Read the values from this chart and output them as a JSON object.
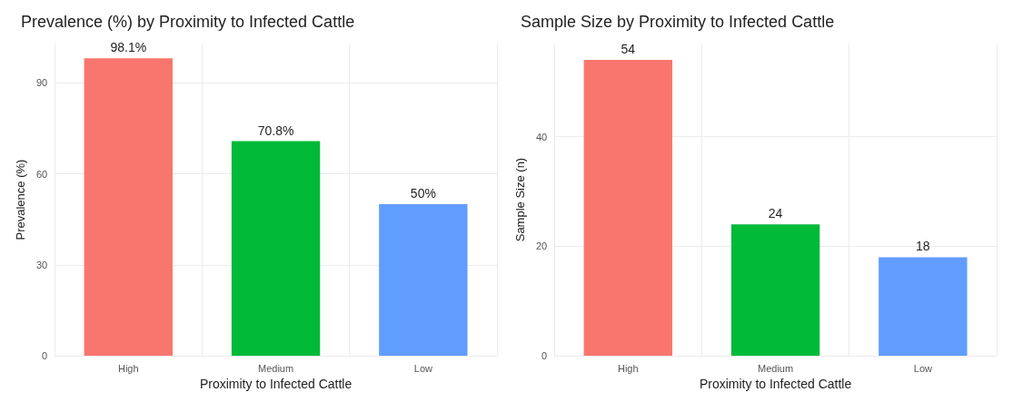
{
  "chart_data": [
    {
      "type": "bar",
      "title": "Prevalence (%) by Proximity to Infected Cattle",
      "xlabel": "Proximity to Infected Cattle",
      "ylabel": "Prevalence (%)",
      "categories": [
        "High",
        "Medium",
        "Low"
      ],
      "colors": [
        "#f8766d",
        "#00ba38",
        "#619cff"
      ],
      "values": [
        98.1,
        70.8,
        50
      ],
      "value_labels": [
        "98.1%",
        "70.8%",
        "50%"
      ],
      "ylim": [
        0,
        103
      ],
      "yticks": [
        0,
        30,
        60,
        90
      ],
      "grid": true
    },
    {
      "type": "bar",
      "title": "Sample Size by Proximity to Infected Cattle",
      "xlabel": "Proximity to Infected Cattle",
      "ylabel": "Sample Size (n)",
      "categories": [
        "High",
        "Medium",
        "Low"
      ],
      "colors": [
        "#f8766d",
        "#00ba38",
        "#619cff"
      ],
      "values": [
        54,
        24,
        18
      ],
      "data_labels": true,
      "ylim": [
        0,
        57
      ],
      "yticks": [
        0,
        20,
        40
      ],
      "grid": true
    }
  ]
}
